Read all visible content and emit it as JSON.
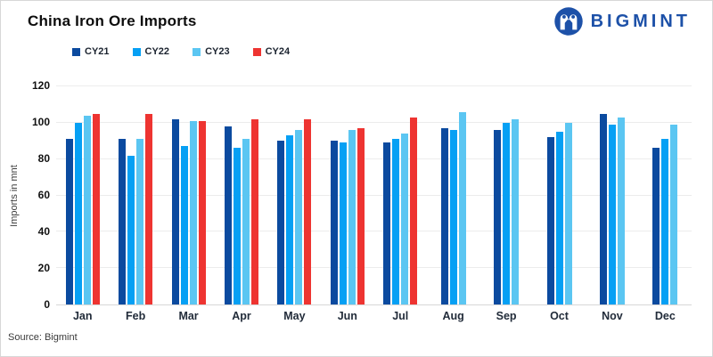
{
  "header": {
    "title": "China Iron Ore Imports",
    "brand": "BIGMINT"
  },
  "source": "Source: Bigmint",
  "colors": {
    "brand": "#1d51a8",
    "grid": "#ececec",
    "axis": "#d6d6d6",
    "cy21": "#0b4a9f",
    "cy22": "#06a0f4",
    "cy23": "#5bc6f2",
    "cy24": "#ee3431"
  },
  "chart_data": {
    "type": "bar",
    "title": "China Iron Ore Imports",
    "categories": [
      "Jan",
      "Feb",
      "Mar",
      "Apr",
      "May",
      "Jun",
      "Jul",
      "Aug",
      "Sep",
      "Oct",
      "Nov",
      "Dec"
    ],
    "series": [
      {
        "name": "CY21",
        "color": "#0b4a9f",
        "values": [
          91,
          91,
          102,
          98,
          90,
          90,
          89,
          97,
          96,
          92,
          105,
          86
        ]
      },
      {
        "name": "CY22",
        "color": "#06a0f4",
        "values": [
          100,
          82,
          87,
          86,
          93,
          89,
          91,
          96,
          100,
          95,
          99,
          91
        ]
      },
      {
        "name": "CY23",
        "color": "#5bc6f2",
        "values": [
          104,
          91,
          101,
          91,
          96,
          96,
          94,
          106,
          102,
          100,
          103,
          99
        ]
      },
      {
        "name": "CY24",
        "color": "#ee3431",
        "values": [
          105,
          105,
          101,
          102,
          102,
          97,
          103,
          null,
          null,
          null,
          null,
          null
        ]
      }
    ],
    "xlabel": "",
    "ylabel": "Imports in mnt",
    "ylim": [
      0,
      120
    ],
    "ytick_step": 20,
    "grid": true,
    "legend_position": "top"
  }
}
